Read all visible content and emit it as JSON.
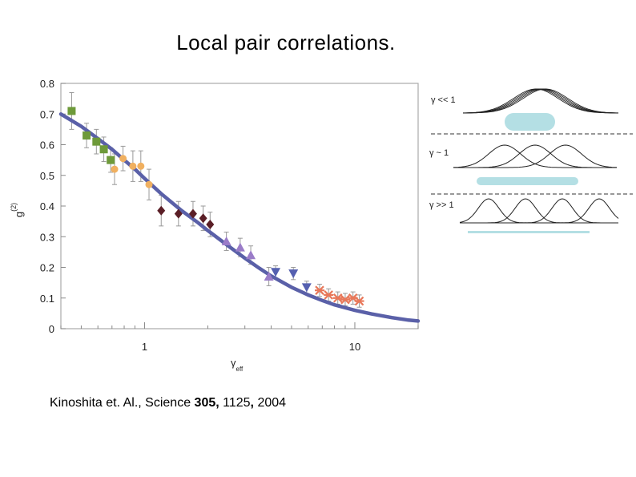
{
  "slide": {
    "title": "Local pair correlations.",
    "citation_prefix": "Kinoshita et. Al., Science ",
    "citation_volume": "305,",
    "citation_middle": " 1125",
    "citation_comma": ",",
    "citation_year": " 2004"
  },
  "chart_data": {
    "type": "scatter",
    "x_scale": "log",
    "xlim": [
      0.4,
      20
    ],
    "ylim": [
      0,
      0.8
    ],
    "xlabel": "γ",
    "xlabel_sub": "eff",
    "ylabel": "g",
    "ylabel_sup": "(2)",
    "x_ticks": [
      1,
      10
    ],
    "y_ticks": [
      0,
      0.1,
      0.2,
      0.3,
      0.4,
      0.5,
      0.6,
      0.7,
      0.8
    ],
    "y_tick_labels": [
      "0",
      "0.1",
      "0.2",
      "0.3",
      "0.4",
      "0.5",
      "0.6",
      "0.7",
      "0.8"
    ],
    "grid": false,
    "colors": {
      "curve": "#5a60a8",
      "green": "#6e9a3a",
      "orange": "#f0b060",
      "maroon": "#5a1e26",
      "purple": "#9a7cc8",
      "blue": "#5560b0",
      "coral": "#e8785a",
      "errorbar": "#999999",
      "schematic_fill": "#b4dfe4"
    },
    "curve": {
      "x": [
        0.4,
        0.5,
        0.6,
        0.7,
        0.8,
        0.9,
        1.0,
        1.2,
        1.5,
        1.8,
        2.0,
        2.5,
        3.0,
        3.5,
        4.0,
        5.0,
        6.0,
        7.0,
        8.0,
        10.0,
        12.0,
        15.0,
        18.0,
        20.0
      ],
      "y": [
        0.7,
        0.66,
        0.62,
        0.585,
        0.55,
        0.52,
        0.49,
        0.44,
        0.385,
        0.345,
        0.32,
        0.27,
        0.23,
        0.198,
        0.172,
        0.135,
        0.11,
        0.092,
        0.078,
        0.06,
        0.048,
        0.036,
        0.028,
        0.025
      ]
    },
    "series": [
      {
        "marker": "square",
        "color_key": "green",
        "x": [
          0.45,
          0.53,
          0.59,
          0.64,
          0.69
        ],
        "y": [
          0.71,
          0.63,
          0.61,
          0.585,
          0.55
        ],
        "err": [
          0.06,
          0.04,
          0.04,
          0.04,
          0.04
        ]
      },
      {
        "marker": "circle",
        "color_key": "orange",
        "x": [
          0.72,
          0.79,
          0.88,
          0.96,
          1.05
        ],
        "y": [
          0.52,
          0.555,
          0.53,
          0.53,
          0.47
        ],
        "err": [
          0.05,
          0.04,
          0.05,
          0.05,
          0.05
        ]
      },
      {
        "marker": "diamond",
        "color_key": "maroon",
        "x": [
          1.2,
          1.45,
          1.7,
          1.9,
          2.05
        ],
        "y": [
          0.385,
          0.375,
          0.375,
          0.36,
          0.34
        ],
        "err": [
          0.05,
          0.04,
          0.04,
          0.04,
          0.04
        ]
      },
      {
        "marker": "triangle-up",
        "color_key": "purple",
        "x": [
          2.45,
          2.85,
          3.2,
          3.9
        ],
        "y": [
          0.285,
          0.265,
          0.24,
          0.17
        ],
        "err": [
          0.03,
          0.03,
          0.03,
          0.03
        ]
      },
      {
        "marker": "triangle-down",
        "color_key": "blue",
        "x": [
          4.2,
          5.1,
          5.9
        ],
        "y": [
          0.185,
          0.18,
          0.135
        ],
        "err": [
          0.02,
          0.02,
          0.02
        ]
      },
      {
        "marker": "star",
        "color_key": "coral",
        "x": [
          6.8,
          7.5,
          8.3,
          9.0,
          9.8,
          10.5
        ],
        "y": [
          0.125,
          0.11,
          0.1,
          0.095,
          0.1,
          0.09
        ],
        "err": [
          0.02,
          0.02,
          0.02,
          0.02,
          0.02,
          0.02
        ]
      }
    ]
  },
  "schematic": {
    "label_prefix": "γ",
    "labels": [
      " << 1",
      " ~ 1",
      " >> 1"
    ]
  }
}
